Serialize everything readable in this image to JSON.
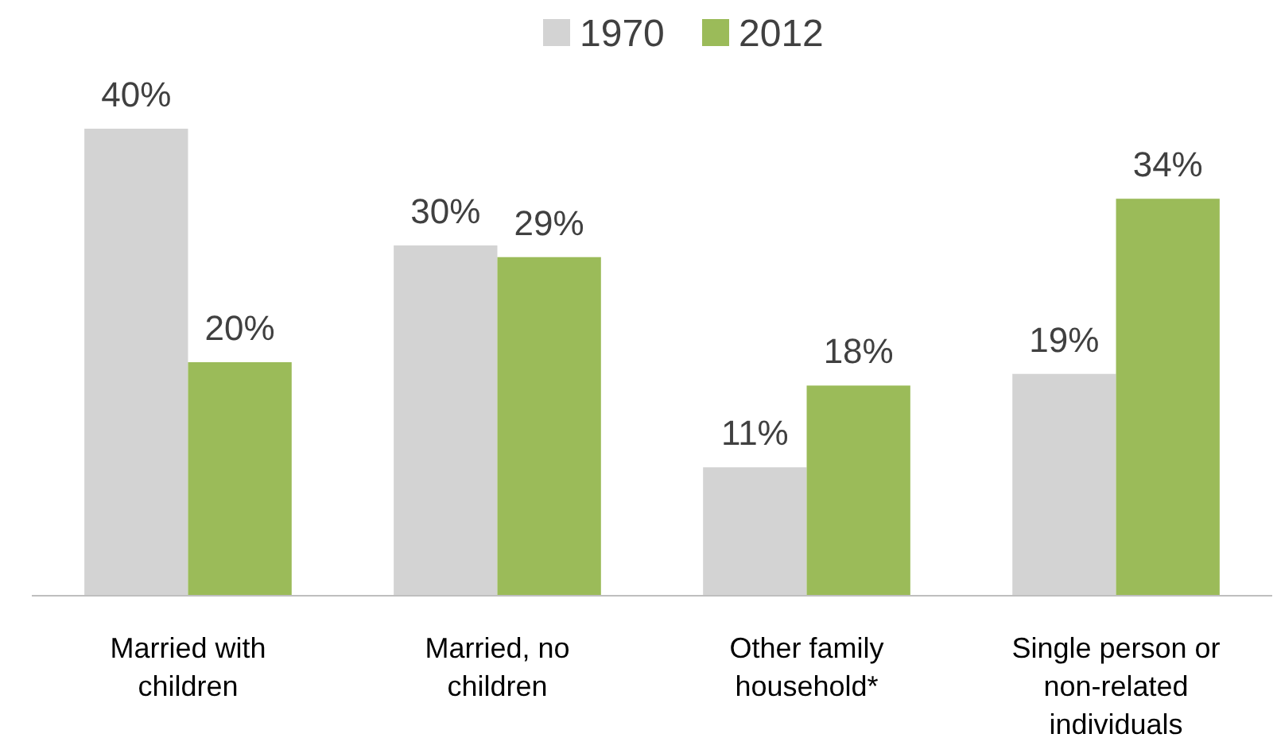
{
  "chart_data": {
    "type": "bar",
    "categories": [
      "Married with children",
      "Married, no children",
      "Other family household*",
      "Single person or non-related individuals"
    ],
    "series": [
      {
        "name": "1970",
        "color": "#d3d3d3",
        "values": [
          40,
          30,
          11,
          19
        ],
        "value_labels": [
          "40%",
          "30%",
          "11%",
          "19%"
        ]
      },
      {
        "name": "2012",
        "color": "#9bbb59",
        "values": [
          20,
          29,
          18,
          34
        ],
        "value_labels": [
          "20%",
          "29%",
          "18%",
          "34%"
        ]
      }
    ],
    "legend": "top"
  }
}
